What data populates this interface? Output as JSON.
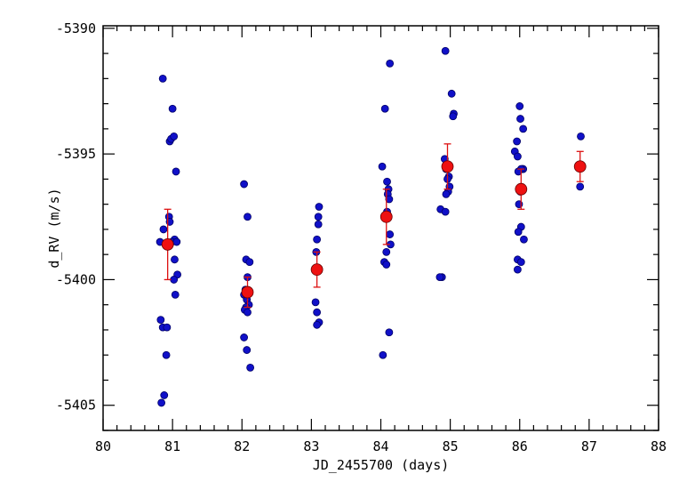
{
  "chart_data": {
    "type": "scatter",
    "title": "",
    "xlabel": "JD_2455700 (days)",
    "ylabel": "d_RV (m/s)",
    "xlim": [
      80,
      88
    ],
    "ylim": [
      -5406,
      -5389.9
    ],
    "x_ticks": [
      "80",
      "81",
      "82",
      "83",
      "84",
      "85",
      "86",
      "87",
      "88"
    ],
    "y_ticks": [
      "-5390",
      "-5395",
      "-5400",
      "-5405"
    ],
    "x_tick_values": [
      80,
      81,
      82,
      83,
      84,
      85,
      86,
      87,
      88
    ],
    "y_tick_values": [
      -5390,
      -5395,
      -5400,
      -5405
    ],
    "grid": false,
    "legend": "none",
    "colors": {
      "points": "#1010c8",
      "binned": "#ee1111",
      "errorbar": "#dd1111"
    },
    "series": [
      {
        "marker": "small-blue-circle",
        "x": [
          80.86,
          80.96,
          80.98,
          81.02,
          81.0,
          81.05,
          80.95,
          80.96,
          80.87,
          81.03,
          80.99,
          81.06,
          80.82,
          81.03,
          81.07,
          81.02,
          81.04,
          80.83,
          80.86,
          80.92,
          80.91,
          80.88,
          80.84,
          82.03,
          82.08,
          82.06,
          82.11,
          82.08,
          82.05,
          82.03,
          82.07,
          82.1,
          82.06,
          82.04,
          82.08,
          82.03,
          82.07,
          82.12,
          83.11,
          83.1,
          83.1,
          83.08,
          83.07,
          83.09,
          83.06,
          83.08,
          83.11,
          83.08,
          84.13,
          84.06,
          84.02,
          84.09,
          84.11,
          84.1,
          84.12,
          84.09,
          84.13,
          84.14,
          84.08,
          84.05,
          84.08,
          84.12,
          84.03,
          84.93,
          85.02,
          85.05,
          85.04,
          84.92,
          84.94,
          84.98,
          84.96,
          84.99,
          84.97,
          84.94,
          84.86,
          84.93,
          84.88,
          84.85,
          86.0,
          86.01,
          86.05,
          85.96,
          85.93,
          85.97,
          86.04,
          86.05,
          86.02,
          85.98,
          86.01,
          85.99,
          86.06,
          86.02,
          85.98,
          85.97,
          86.02,
          85.97,
          86.88,
          86.87
        ],
        "y": [
          -5392,
          -5394.5,
          -5394.4,
          -5394.3,
          -5393.2,
          -5395.7,
          -5397.5,
          -5397.7,
          -5398,
          -5398.4,
          -5398.5,
          -5398.5,
          -5398.5,
          -5399.2,
          -5399.8,
          -5400,
          -5400.6,
          -5401.6,
          -5401.9,
          -5401.9,
          -5403,
          -5404.6,
          -5404.9,
          -5396.2,
          -5397.5,
          -5399.2,
          -5399.3,
          -5399.9,
          -5400.4,
          -5400.6,
          -5400.8,
          -5401,
          -5401.1,
          -5401.2,
          -5401.3,
          -5402.3,
          -5402.8,
          -5403.5,
          -5397.1,
          -5397.5,
          -5397.8,
          -5398.4,
          -5398.9,
          -5399.6,
          -5400.9,
          -5401.3,
          -5401.7,
          -5401.8,
          -5391.4,
          -5393.2,
          -5395.5,
          -5396.1,
          -5396.4,
          -5396.6,
          -5396.8,
          -5397.3,
          -5398.2,
          -5398.6,
          -5398.9,
          -5399.3,
          -5399.4,
          -5402.1,
          -5403,
          -5390.9,
          -5392.6,
          -5393.4,
          -5393.5,
          -5395.2,
          -5395.6,
          -5395.9,
          -5396.0,
          -5396.3,
          -5396.5,
          -5396.6,
          -5397.2,
          -5397.3,
          -5399.9,
          -5399.9,
          -5393.1,
          -5393.6,
          -5394.0,
          -5394.5,
          -5394.9,
          -5395.1,
          -5395.6,
          -5395.6,
          -5395.6,
          -5395.7,
          -5396.5,
          -5397.0,
          -5398.4,
          -5397.9,
          -5398.1,
          -5399.2,
          -5399.3,
          -5399.6,
          -5394.3,
          -5396.3
        ]
      },
      {
        "marker": "large-red-circle-errorbar",
        "x": [
          80.93,
          82.08,
          83.08,
          84.08,
          84.96,
          86.02,
          86.87
        ],
        "y": [
          -5398.6,
          -5400.5,
          -5399.6,
          -5397.5,
          -5395.5,
          -5396.4,
          -5395.5
        ],
        "err": [
          1.4,
          0.6,
          0.7,
          1.1,
          0.9,
          0.8,
          0.6
        ]
      }
    ]
  }
}
